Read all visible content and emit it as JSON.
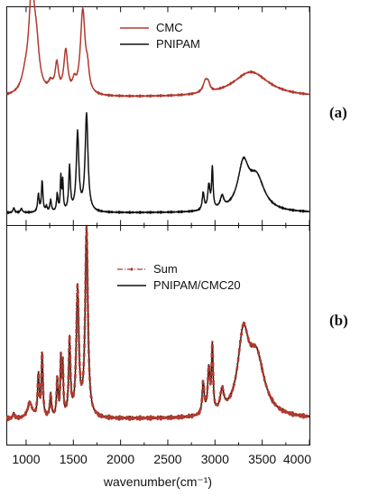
{
  "chart_data": [
    {
      "panel": "a",
      "type": "line",
      "panel_label": "(a)",
      "xlabel": "wavenumber(cm⁻¹)",
      "xlim": [
        800,
        4000
      ],
      "x_ticks": [
        1000,
        1500,
        2000,
        2500,
        3000,
        3500,
        4000
      ],
      "x_tick_labels": [
        "1000",
        "1500",
        "2000",
        "2500",
        "3000",
        "3500",
        "4000"
      ],
      "y_axis_labeled": false,
      "legend_position": "top-center",
      "series": [
        {
          "name": "CMC",
          "color": "#b03a2e",
          "baseline": 0.18,
          "peaks": [
            [
              990,
              45,
              0.12
            ],
            [
              1060,
              38,
              0.97
            ],
            [
              1110,
              35,
              0.35
            ],
            [
              1260,
              30,
              0.09
            ],
            [
              1325,
              22,
              0.28
            ],
            [
              1420,
              25,
              0.42
            ],
            [
              1510,
              20,
              0.1
            ],
            [
              1600,
              30,
              0.83
            ],
            [
              1650,
              20,
              0.18
            ],
            [
              2900,
              30,
              0.12
            ],
            [
              2930,
              18,
              0.06
            ],
            [
              3380,
              230,
              0.25
            ]
          ]
        },
        {
          "name": "PNIPAM",
          "color": "#111111",
          "baseline": 0.04,
          "peaks": [
            [
              870,
              10,
              0.05
            ],
            [
              950,
              12,
              0.04
            ],
            [
              1130,
              10,
              0.18
            ],
            [
              1170,
              9,
              0.32
            ],
            [
              1215,
              10,
              0.05
            ],
            [
              1260,
              10,
              0.12
            ],
            [
              1330,
              9,
              0.18
            ],
            [
              1368,
              7,
              0.35
            ],
            [
              1388,
              7,
              0.3
            ],
            [
              1460,
              11,
              0.45
            ],
            [
              1545,
              16,
              0.8
            ],
            [
              1640,
              18,
              1.0
            ],
            [
              2875,
              12,
              0.18
            ],
            [
              2935,
              14,
              0.25
            ],
            [
              2972,
              9,
              0.42
            ],
            [
              3075,
              22,
              0.12
            ],
            [
              3300,
              70,
              0.45
            ],
            [
              3440,
              100,
              0.33
            ]
          ]
        }
      ]
    },
    {
      "panel": "b",
      "type": "line",
      "panel_label": "(b)",
      "xlabel": "wavenumber(cm⁻¹)",
      "xlim": [
        800,
        4000
      ],
      "x_ticks": [
        1000,
        1500,
        2000,
        2500,
        3000,
        3500,
        4000
      ],
      "x_tick_labels": [
        "1000",
        "1500",
        "2000",
        "2500",
        "3000",
        "3500",
        "4000"
      ],
      "y_axis_labeled": false,
      "legend_position": "top-center",
      "series": [
        {
          "name": "Sum",
          "color": "#b03a2e",
          "style": "dash-dot",
          "baseline": 0.03,
          "peaks": [
            [
              870,
              10,
              0.03
            ],
            [
              1040,
              30,
              0.08
            ],
            [
              1130,
              10,
              0.22
            ],
            [
              1170,
              9,
              0.34
            ],
            [
              1260,
              10,
              0.12
            ],
            [
              1330,
              9,
              0.2
            ],
            [
              1368,
              7,
              0.3
            ],
            [
              1388,
              7,
              0.27
            ],
            [
              1460,
              11,
              0.4
            ],
            [
              1545,
              16,
              0.67
            ],
            [
              1640,
              17,
              1.0
            ],
            [
              2875,
              12,
              0.17
            ],
            [
              2935,
              14,
              0.24
            ],
            [
              2972,
              9,
              0.35
            ],
            [
              3075,
              22,
              0.11
            ],
            [
              3300,
              70,
              0.4
            ],
            [
              3440,
              100,
              0.3
            ]
          ]
        },
        {
          "name": "PNIPAM/CMC20",
          "color": "#111111",
          "style": "solid",
          "baseline": 0.03,
          "peaks": [
            [
              870,
              10,
              0.03
            ],
            [
              1040,
              30,
              0.08
            ],
            [
              1130,
              10,
              0.22
            ],
            [
              1170,
              9,
              0.34
            ],
            [
              1260,
              10,
              0.12
            ],
            [
              1330,
              9,
              0.2
            ],
            [
              1368,
              7,
              0.3
            ],
            [
              1388,
              7,
              0.27
            ],
            [
              1460,
              11,
              0.4
            ],
            [
              1545,
              16,
              0.67
            ],
            [
              1640,
              17,
              1.0
            ],
            [
              2875,
              12,
              0.17
            ],
            [
              2935,
              14,
              0.24
            ],
            [
              2972,
              9,
              0.35
            ],
            [
              3075,
              22,
              0.11
            ],
            [
              3300,
              70,
              0.4
            ],
            [
              3440,
              100,
              0.3
            ]
          ]
        }
      ]
    }
  ]
}
